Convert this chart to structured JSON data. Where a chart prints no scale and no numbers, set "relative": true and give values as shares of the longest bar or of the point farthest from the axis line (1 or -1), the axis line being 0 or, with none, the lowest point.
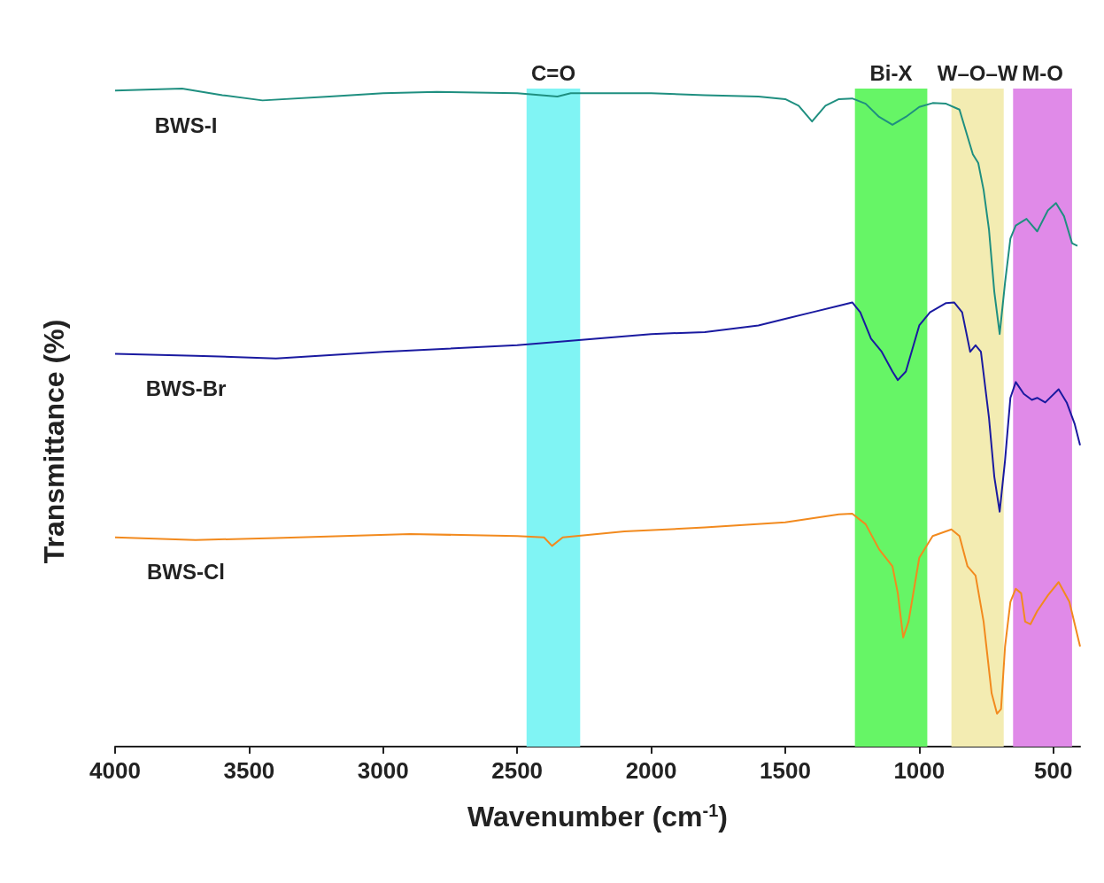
{
  "chart_data": {
    "type": "line",
    "relative": true,
    "xlabel": "Wavenumber (cm$^{-1}$)",
    "ylabel": "Transmittance (%)",
    "xlim": [
      4000,
      400
    ],
    "xticks": [
      4000,
      3500,
      3000,
      2500,
      2000,
      1500,
      1000,
      500
    ],
    "grid": false,
    "marker": "none",
    "bands": [
      {
        "axis": "x",
        "from": 2465,
        "to": 2265,
        "label": "C=O",
        "color": "#80f4f4"
      },
      {
        "axis": "x",
        "from": 1240,
        "to": 970,
        "label": "Bi-X",
        "color": "#66f566"
      },
      {
        "axis": "x",
        "from": 880,
        "to": 685,
        "label": "W–O–W",
        "color": "#f3ecb2"
      },
      {
        "axis": "x",
        "from": 650,
        "to": 430,
        "label": "M-O",
        "color": "#e08ae8"
      }
    ],
    "series": [
      {
        "name": "BWS-I",
        "color": "#1f8f80",
        "x": [
          4000,
          3750,
          3600,
          3450,
          3200,
          3000,
          2800,
          2500,
          2350,
          2300,
          2000,
          1800,
          1600,
          1500,
          1450,
          1400,
          1350,
          1300,
          1250,
          1200,
          1150,
          1100,
          1050,
          1000,
          950,
          900,
          850,
          800,
          780,
          760,
          740,
          720,
          700,
          680,
          660,
          640,
          600,
          560,
          520,
          490,
          460,
          430,
          410
        ],
        "values": [
          0.997,
          1.0,
          0.99,
          0.982,
          0.988,
          0.993,
          0.995,
          0.993,
          0.988,
          0.993,
          0.993,
          0.99,
          0.988,
          0.984,
          0.974,
          0.95,
          0.974,
          0.984,
          0.985,
          0.977,
          0.957,
          0.945,
          0.957,
          0.972,
          0.978,
          0.977,
          0.968,
          0.9,
          0.887,
          0.846,
          0.786,
          0.691,
          0.627,
          0.705,
          0.772,
          0.792,
          0.802,
          0.783,
          0.815,
          0.826,
          0.806,
          0.765,
          0.761
        ]
      },
      {
        "name": "BWS-Br",
        "color": "#1a1aa0",
        "x": [
          4000,
          3700,
          3400,
          3000,
          2500,
          2200,
          2000,
          1800,
          1600,
          1500,
          1400,
          1300,
          1250,
          1220,
          1180,
          1140,
          1100,
          1080,
          1050,
          1000,
          960,
          900,
          870,
          840,
          810,
          790,
          770,
          740,
          720,
          700,
          680,
          660,
          640,
          610,
          580,
          560,
          530,
          480,
          450,
          420,
          400
        ],
        "values": [
          0.597,
          0.594,
          0.59,
          0.6,
          0.61,
          0.62,
          0.627,
          0.63,
          0.64,
          0.65,
          0.66,
          0.67,
          0.675,
          0.66,
          0.62,
          0.6,
          0.57,
          0.557,
          0.57,
          0.64,
          0.66,
          0.674,
          0.675,
          0.66,
          0.6,
          0.61,
          0.6,
          0.5,
          0.41,
          0.357,
          0.435,
          0.53,
          0.554,
          0.536,
          0.527,
          0.53,
          0.523,
          0.543,
          0.523,
          0.49,
          0.458
        ]
      },
      {
        "name": "BWS-Cl",
        "color": "#f28a1e",
        "x": [
          4000,
          3700,
          3400,
          2900,
          2500,
          2400,
          2370,
          2330,
          2100,
          1800,
          1500,
          1300,
          1250,
          1200,
          1150,
          1100,
          1080,
          1060,
          1040,
          1000,
          950,
          880,
          850,
          820,
          790,
          760,
          730,
          710,
          695,
          680,
          660,
          640,
          620,
          605,
          585,
          560,
          520,
          480,
          440,
          400
        ],
        "values": [
          0.318,
          0.314,
          0.317,
          0.323,
          0.32,
          0.318,
          0.305,
          0.318,
          0.327,
          0.333,
          0.341,
          0.353,
          0.354,
          0.338,
          0.3,
          0.274,
          0.233,
          0.166,
          0.19,
          0.287,
          0.32,
          0.33,
          0.32,
          0.274,
          0.26,
          0.19,
          0.081,
          0.05,
          0.057,
          0.152,
          0.22,
          0.24,
          0.233,
          0.19,
          0.186,
          0.206,
          0.23,
          0.25,
          0.22,
          0.152
        ]
      }
    ]
  }
}
